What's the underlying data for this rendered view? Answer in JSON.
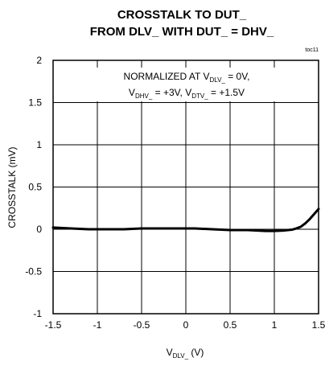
{
  "chart_data": {
    "type": "line",
    "title_line1": "CROSSTALK TO DUT_",
    "title_line2": "FROM DLV_ WITH DUT_ = DHV_",
    "figure_id": "toc11",
    "xlabel": {
      "main": "V",
      "sub": "DLV_",
      "tail": " (V)"
    },
    "ylabel": "CROSSTALK (mV)",
    "xlim": [
      -1.5,
      1.5
    ],
    "ylim": [
      -1,
      2
    ],
    "xticks": [
      -1.5,
      -1,
      -0.5,
      0,
      0.5,
      1,
      1.5
    ],
    "xtick_labels": [
      "-1.5",
      "-1",
      "-0.5",
      "0",
      "0.5",
      "1",
      "1.5"
    ],
    "yticks": [
      -1,
      -0.5,
      0,
      0.5,
      1,
      1.5,
      2
    ],
    "ytick_labels": [
      "-1",
      "-0.5",
      "0",
      "0.5",
      "1",
      "1.5",
      "2"
    ],
    "grid": true,
    "annotation": {
      "line1_prefix": "NORMALIZED AT V",
      "line1_sub": "DLV_",
      "line1_suffix": " = 0V,",
      "line2_a_main": "V",
      "line2_a_sub": "DHV_",
      "line2_a_suffix": " = +3V, ",
      "line2_b_main": "V",
      "line2_b_sub": "DTV_",
      "line2_b_suffix": " = +1.5V"
    },
    "series": [
      {
        "x": [
          -1.5,
          -1.3,
          -1.1,
          -0.9,
          -0.7,
          -0.5,
          -0.3,
          -0.1,
          0.1,
          0.3,
          0.5,
          0.7,
          0.9,
          1.0,
          1.1,
          1.2,
          1.25,
          1.3,
          1.35,
          1.4,
          1.45,
          1.5
        ],
        "values": [
          0.02,
          0.01,
          0.0,
          0.0,
          0.0,
          0.01,
          0.01,
          0.01,
          0.01,
          0.0,
          -0.01,
          -0.01,
          -0.02,
          -0.02,
          -0.015,
          -0.005,
          0.01,
          0.03,
          0.07,
          0.12,
          0.18,
          0.24
        ]
      }
    ]
  }
}
